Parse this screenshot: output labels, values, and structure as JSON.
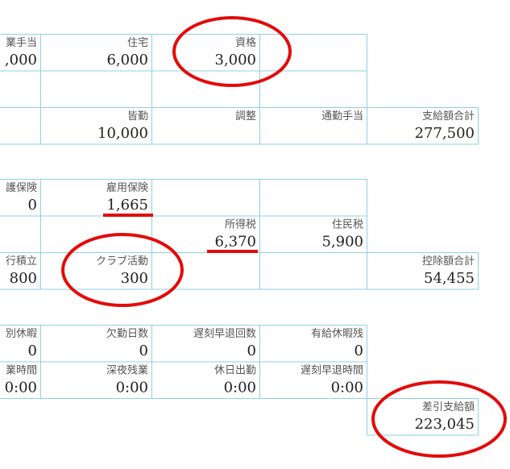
{
  "sections": [
    {
      "rows": [
        {
          "cells": [
            {
              "label": "業手当",
              "value": ",000"
            },
            {
              "label": "住宅",
              "value": "6,000"
            },
            {
              "label": "資格",
              "value": "3,000"
            },
            {},
            null
          ]
        },
        {
          "cells": [
            {},
            {},
            {},
            {},
            null
          ]
        },
        {
          "cells": [
            {},
            {
              "label": "皆勤",
              "value": "10,000"
            },
            {
              "label": "調整"
            },
            {
              "label": "通勤手当"
            },
            {
              "label": "支給額合計",
              "value": "277,500"
            }
          ]
        }
      ]
    },
    {
      "rows": [
        {
          "cells": [
            {
              "label": "護保険",
              "value": "0"
            },
            {
              "label": "雇用保険",
              "value": "1,665"
            },
            {},
            {},
            null
          ]
        },
        {
          "cells": [
            {},
            {},
            {
              "label": "所得税",
              "value": "6,370"
            },
            {
              "label": "住民税",
              "value": "5,900"
            },
            null
          ]
        },
        {
          "cells": [
            {
              "label": "行積立",
              "value": "800"
            },
            {
              "label": "クラブ活動",
              "value": "300"
            },
            {},
            {},
            {
              "label": "控除額合計",
              "value": "54,455"
            }
          ]
        }
      ]
    },
    {
      "rows": [
        {
          "cells": [
            {
              "label": "別休暇",
              "value": "0"
            },
            {
              "label": "欠勤日数",
              "value": "0"
            },
            {
              "label": "遅刻早退回数",
              "value": "0"
            },
            {
              "label": "有給休暇残",
              "value": "0"
            },
            null
          ]
        },
        {
          "cells": [
            {
              "label": "業時間",
              "value": "0:00"
            },
            {
              "label": "深夜残業",
              "value": "0:00"
            },
            {
              "label": "休日出勤",
              "value": "0:00"
            },
            {
              "label": "遅刻早退時間",
              "value": "0:00"
            },
            null
          ]
        },
        {
          "cells": [
            null,
            null,
            null,
            null,
            {
              "label": "差引支給額",
              "value": "223,045"
            }
          ]
        }
      ]
    }
  ]
}
